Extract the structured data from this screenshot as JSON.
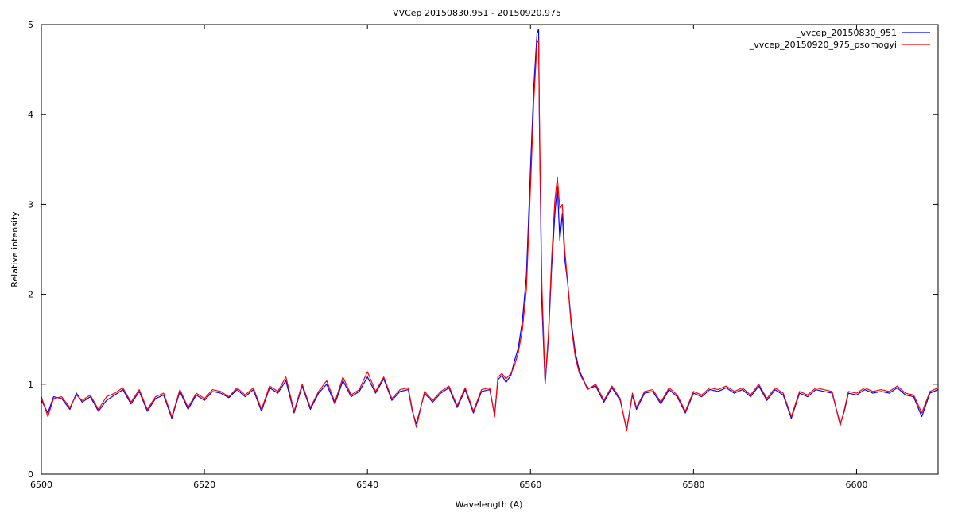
{
  "chart_data": {
    "type": "line",
    "title": "VVCep 20150830.951 - 20150920.975",
    "xlabel": "Wavelength (A)",
    "ylabel": "Relative intensity",
    "xlim": [
      6500,
      6610
    ],
    "ylim": [
      0,
      5
    ],
    "x_ticks": [
      6500,
      6520,
      6540,
      6560,
      6580,
      6600
    ],
    "y_ticks": [
      0,
      1,
      2,
      3,
      4,
      5
    ],
    "x_tick_labels": [
      "6500",
      "6520",
      "6540",
      "6560",
      "6580",
      "6600"
    ],
    "y_tick_labels": [
      "0",
      "1",
      "2",
      "3",
      "4",
      "5"
    ],
    "grid": false,
    "legend_position": "top-right",
    "series": [
      {
        "name": "_vvcep_20150830_951",
        "color": "#0000ff",
        "x": [
          6500,
          6500.8,
          6501.5,
          6502.5,
          6503.5,
          6504.3,
          6505,
          6506,
          6507,
          6508,
          6509,
          6510,
          6511,
          6512,
          6513,
          6514,
          6515,
          6516,
          6517,
          6518,
          6519,
          6520,
          6521,
          6522,
          6523,
          6524,
          6525,
          6526,
          6527,
          6528,
          6529,
          6530,
          6531,
          6532,
          6533,
          6534,
          6535,
          6536,
          6537,
          6538,
          6539,
          6540,
          6541,
          6542,
          6543,
          6544,
          6545,
          6545.5,
          6546,
          6547,
          6548,
          6549,
          6550,
          6551,
          6552,
          6553,
          6554,
          6555,
          6555.6,
          6556,
          6556.5,
          6557,
          6557.6,
          6558,
          6558.5,
          6559,
          6559.5,
          6560,
          6560.4,
          6560.8,
          6561.1,
          6561.4,
          6561.8,
          6562.2,
          6562.6,
          6563,
          6563.3,
          6563.6,
          6563.9,
          6564.2,
          6564.6,
          6565,
          6565.5,
          6566,
          6566.5,
          6567,
          6568,
          6569,
          6570,
          6571,
          6571.8,
          6572.5,
          6573,
          6574,
          6575,
          6576,
          6577,
          6578,
          6579,
          6580,
          6581,
          6582,
          6583,
          6584,
          6585,
          6586,
          6587,
          6588,
          6589,
          6590,
          6591,
          6592,
          6593,
          6594,
          6595,
          6596,
          6597,
          6598,
          6598.5,
          6599,
          6600,
          6601,
          6602,
          6603,
          6604,
          6605,
          6606,
          6607,
          6608,
          6609,
          6610
        ],
        "y": [
          0.82,
          0.68,
          0.86,
          0.84,
          0.72,
          0.9,
          0.8,
          0.86,
          0.7,
          0.82,
          0.88,
          0.94,
          0.78,
          0.92,
          0.7,
          0.84,
          0.88,
          0.62,
          0.92,
          0.72,
          0.88,
          0.82,
          0.92,
          0.9,
          0.85,
          0.94,
          0.86,
          0.94,
          0.7,
          0.96,
          0.9,
          1.04,
          0.68,
          0.98,
          0.72,
          0.9,
          1.0,
          0.78,
          1.04,
          0.86,
          0.92,
          1.08,
          0.9,
          1.06,
          0.82,
          0.92,
          0.94,
          0.7,
          0.56,
          0.9,
          0.8,
          0.9,
          0.96,
          0.74,
          0.94,
          0.68,
          0.92,
          0.94,
          0.66,
          1.05,
          1.1,
          1.02,
          1.1,
          1.25,
          1.4,
          1.7,
          2.2,
          3.4,
          4.3,
          4.9,
          3.8,
          1.9,
          1.0,
          1.5,
          2.3,
          2.9,
          3.2,
          2.6,
          2.9,
          2.4,
          2.1,
          1.7,
          1.35,
          1.15,
          1.05,
          0.95,
          0.98,
          0.8,
          0.96,
          0.82,
          0.5,
          0.88,
          0.72,
          0.9,
          0.92,
          0.78,
          0.94,
          0.86,
          0.68,
          0.9,
          0.86,
          0.94,
          0.92,
          0.96,
          0.9,
          0.94,
          0.86,
          0.98,
          0.82,
          0.94,
          0.88,
          0.62,
          0.9,
          0.86,
          0.94,
          0.92,
          0.9,
          0.56,
          0.7,
          0.9,
          0.88,
          0.94,
          0.9,
          0.92,
          0.9,
          0.96,
          0.88,
          0.86,
          0.64,
          0.9,
          0.94
        ],
        "peak": [
          6561,
          4.95
        ]
      },
      {
        "name": "_vvcep_20150920_975_psomogyi",
        "color": "#ff0000",
        "x": [
          6500,
          6500.8,
          6501.5,
          6502.5,
          6503.5,
          6504.3,
          6505,
          6506,
          6507,
          6508,
          6509,
          6510,
          6511,
          6512,
          6513,
          6514,
          6515,
          6516,
          6517,
          6518,
          6519,
          6520,
          6521,
          6522,
          6523,
          6524,
          6525,
          6526,
          6527,
          6528,
          6529,
          6530,
          6531,
          6532,
          6533,
          6534,
          6535,
          6536,
          6537,
          6538,
          6539,
          6540,
          6541,
          6542,
          6543,
          6544,
          6545,
          6545.5,
          6546,
          6547,
          6548,
          6549,
          6550,
          6551,
          6552,
          6553,
          6554,
          6555,
          6555.6,
          6556,
          6556.5,
          6557,
          6557.6,
          6558,
          6558.5,
          6559,
          6559.5,
          6560,
          6560.4,
          6560.8,
          6561.1,
          6561.4,
          6561.8,
          6562.2,
          6562.6,
          6563,
          6563.3,
          6563.6,
          6563.9,
          6564.2,
          6564.6,
          6565,
          6565.5,
          6566,
          6566.5,
          6567,
          6568,
          6569,
          6570,
          6571,
          6571.8,
          6572.5,
          6573,
          6574,
          6575,
          6576,
          6577,
          6578,
          6579,
          6580,
          6581,
          6582,
          6583,
          6584,
          6585,
          6586,
          6587,
          6588,
          6589,
          6590,
          6591,
          6592,
          6593,
          6594,
          6595,
          6596,
          6597,
          6598,
          6598.5,
          6599,
          6600,
          6601,
          6602,
          6603,
          6604,
          6605,
          6606,
          6607,
          6608,
          6609,
          6610
        ],
        "y": [
          0.86,
          0.64,
          0.84,
          0.86,
          0.74,
          0.88,
          0.82,
          0.88,
          0.72,
          0.86,
          0.9,
          0.96,
          0.8,
          0.94,
          0.72,
          0.86,
          0.9,
          0.64,
          0.94,
          0.74,
          0.9,
          0.84,
          0.94,
          0.92,
          0.86,
          0.96,
          0.88,
          0.96,
          0.72,
          0.98,
          0.92,
          1.08,
          0.7,
          1.0,
          0.74,
          0.92,
          1.04,
          0.8,
          1.08,
          0.88,
          0.94,
          1.14,
          0.92,
          1.08,
          0.84,
          0.94,
          0.96,
          0.72,
          0.52,
          0.92,
          0.82,
          0.92,
          0.98,
          0.76,
          0.96,
          0.7,
          0.94,
          0.96,
          0.64,
          1.08,
          1.12,
          1.06,
          1.12,
          1.2,
          1.35,
          1.6,
          2.05,
          3.2,
          4.15,
          4.8,
          3.9,
          2.1,
          1.02,
          1.55,
          2.4,
          3.05,
          3.3,
          2.95,
          3.0,
          2.5,
          2.1,
          1.65,
          1.3,
          1.12,
          1.04,
          0.94,
          1.0,
          0.82,
          0.98,
          0.84,
          0.48,
          0.9,
          0.74,
          0.92,
          0.94,
          0.8,
          0.96,
          0.88,
          0.7,
          0.92,
          0.88,
          0.96,
          0.94,
          0.98,
          0.92,
          0.96,
          0.88,
          1.0,
          0.84,
          0.96,
          0.9,
          0.64,
          0.92,
          0.88,
          0.96,
          0.94,
          0.92,
          0.54,
          0.72,
          0.92,
          0.9,
          0.96,
          0.92,
          0.94,
          0.92,
          0.98,
          0.9,
          0.88,
          0.68,
          0.92,
          0.96
        ],
        "peak": [
          6561,
          4.82
        ]
      }
    ]
  }
}
